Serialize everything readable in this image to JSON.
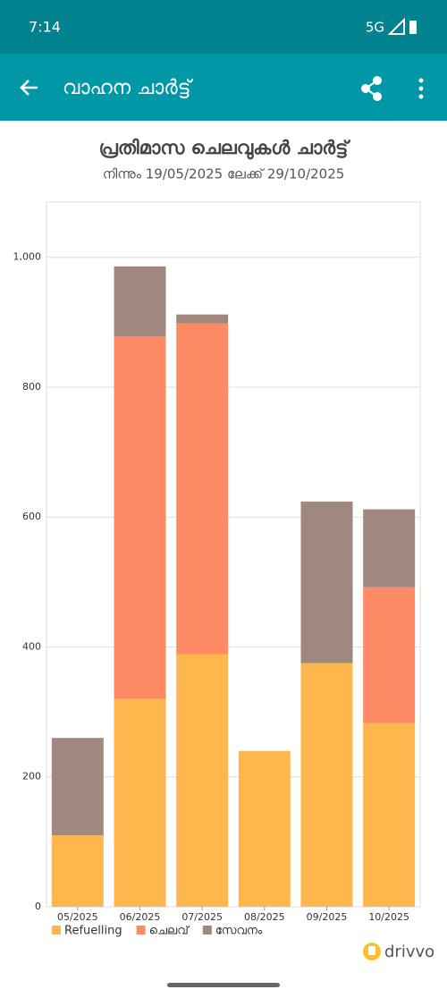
{
  "status_bar": {
    "time": "7:14",
    "network": "5G"
  },
  "app_bar": {
    "title": "വാഹന ചാർട്ട്"
  },
  "brand": "drivvo",
  "chart_data": {
    "type": "stacked_bar",
    "title": "പ്രതിമാസ ചെലവുകൾ ചാർട്ട്",
    "subtitle": "നിന്നും 19/05/2025 ലേക്ക് 29/10/2025",
    "categories": [
      "05/2025",
      "06/2025",
      "07/2025",
      "08/2025",
      "09/2025",
      "10/2025"
    ],
    "series": [
      {
        "name": "Refuelling",
        "color": "#ffb74d",
        "values": [
          110,
          320,
          389,
          240,
          375,
          283
        ]
      },
      {
        "name": "ചെലവ്",
        "color": "#ff8a65",
        "values": [
          0,
          558,
          509,
          0,
          0,
          209
        ]
      },
      {
        "name": "സേവനം",
        "color": "#a1887f",
        "values": [
          150,
          108,
          14,
          0,
          249,
          120
        ]
      }
    ],
    "ylim": [
      0,
      1085
    ],
    "yticks": [
      0,
      200,
      400,
      600,
      800,
      {
        "value": 1000,
        "label": "1,000"
      }
    ],
    "grid": true,
    "legend": "bottom"
  }
}
